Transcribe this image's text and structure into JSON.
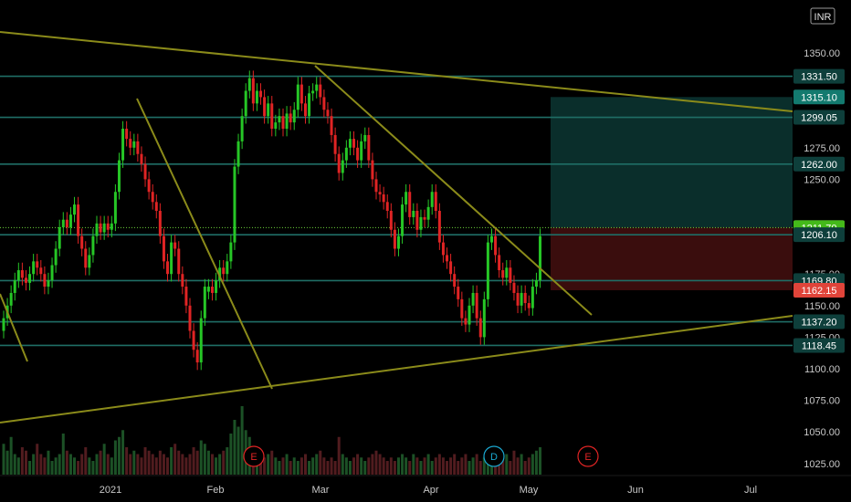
{
  "currency_badge": "INR",
  "colors": {
    "background": "#000000",
    "up": "#26c626",
    "down": "#e02424",
    "hline": "#1f6e66",
    "trendline": "#8b8b1a",
    "target_zone": "#0a2e2b",
    "stop_zone": "#3a0d0d"
  },
  "chart_data": {
    "type": "candlestick",
    "y_axis": {
      "ylim": [
        1015,
        1368
      ],
      "ticks": [
        1025,
        1050,
        1075,
        1100,
        1125,
        1150,
        1175,
        1250,
        1275,
        1350
      ],
      "tick_labels": [
        "1025.00",
        "1050.00",
        "1075.00",
        "1100.00",
        "1125.00",
        "1150.00",
        "1175.00",
        "1250.00",
        "1275.00",
        "1350.00"
      ]
    },
    "x_axis": {
      "labels": [
        "2021",
        "Feb",
        "Mar",
        "Apr",
        "May",
        "Jun",
        "Jul"
      ]
    },
    "horizontal_levels": [
      1331.5,
      1299.05,
      1262.0,
      1206.1,
      1169.8,
      1137.2,
      1118.45
    ],
    "price_tags": [
      {
        "label": "1331.50",
        "value": 1331.5,
        "style": "level"
      },
      {
        "label": "1315.10",
        "value": 1315.1,
        "style": "target"
      },
      {
        "label": "1299.05",
        "value": 1299.05,
        "style": "level"
      },
      {
        "label": "1262.00",
        "value": 1262.0,
        "style": "level"
      },
      {
        "label": "1211.75",
        "value": 1211.75,
        "style": "grey"
      },
      {
        "label": "1211.70",
        "value": 1211.7,
        "style": "last"
      },
      {
        "label": "1206.10",
        "value": 1206.1,
        "style": "level"
      },
      {
        "label": "1169.80",
        "value": 1169.8,
        "style": "level"
      },
      {
        "label": "1162.15",
        "value": 1162.15,
        "style": "stop"
      },
      {
        "label": "1137.20",
        "value": 1137.2,
        "style": "level"
      },
      {
        "label": "1118.45",
        "value": 1118.45,
        "style": "level"
      }
    ],
    "last_price": 1211.7,
    "position": {
      "entry": 1211.7,
      "target": 1315.1,
      "stop": 1162.15
    },
    "events": [
      {
        "label": "E",
        "type": "earnings"
      },
      {
        "label": "D",
        "type": "dividend"
      },
      {
        "label": "E",
        "type": "earnings"
      }
    ],
    "series": [
      {
        "c": 1140,
        "d": 1
      },
      {
        "c": 1150,
        "d": 1
      },
      {
        "c": 1160,
        "d": 1
      },
      {
        "c": 1170,
        "d": 1
      },
      {
        "c": 1178,
        "d": 1
      },
      {
        "c": 1172,
        "d": -1
      },
      {
        "c": 1168,
        "d": -1
      },
      {
        "c": 1175,
        "d": 1
      },
      {
        "c": 1185,
        "d": 1
      },
      {
        "c": 1180,
        "d": -1
      },
      {
        "c": 1175,
        "d": -1
      },
      {
        "c": 1165,
        "d": -1
      },
      {
        "c": 1170,
        "d": 1
      },
      {
        "c": 1182,
        "d": 1
      },
      {
        "c": 1195,
        "d": 1
      },
      {
        "c": 1212,
        "d": 1
      },
      {
        "c": 1218,
        "d": 1
      },
      {
        "c": 1212,
        "d": -1
      },
      {
        "c": 1222,
        "d": 1
      },
      {
        "c": 1230,
        "d": 1
      },
      {
        "c": 1205,
        "d": -1
      },
      {
        "c": 1195,
        "d": -1
      },
      {
        "c": 1180,
        "d": -1
      },
      {
        "c": 1190,
        "d": 1
      },
      {
        "c": 1205,
        "d": 1
      },
      {
        "c": 1215,
        "d": 1
      },
      {
        "c": 1208,
        "d": -1
      },
      {
        "c": 1215,
        "d": 1
      },
      {
        "c": 1210,
        "d": -1
      },
      {
        "c": 1215,
        "d": 1
      },
      {
        "c": 1240,
        "d": 1
      },
      {
        "c": 1265,
        "d": 1
      },
      {
        "c": 1290,
        "d": 1
      },
      {
        "c": 1282,
        "d": -1
      },
      {
        "c": 1275,
        "d": -1
      },
      {
        "c": 1280,
        "d": 1
      },
      {
        "c": 1270,
        "d": -1
      },
      {
        "c": 1262,
        "d": -1
      },
      {
        "c": 1250,
        "d": -1
      },
      {
        "c": 1240,
        "d": -1
      },
      {
        "c": 1232,
        "d": -1
      },
      {
        "c": 1225,
        "d": -1
      },
      {
        "c": 1205,
        "d": -1
      },
      {
        "c": 1185,
        "d": -1
      },
      {
        "c": 1175,
        "d": -1
      },
      {
        "c": 1200,
        "d": 1
      },
      {
        "c": 1195,
        "d": -1
      },
      {
        "c": 1175,
        "d": -1
      },
      {
        "c": 1165,
        "d": -1
      },
      {
        "c": 1150,
        "d": -1
      },
      {
        "c": 1130,
        "d": -1
      },
      {
        "c": 1115,
        "d": -1
      },
      {
        "c": 1105,
        "d": -1
      },
      {
        "c": 1140,
        "d": 1
      },
      {
        "c": 1165,
        "d": 1
      },
      {
        "c": 1165,
        "d": 1
      },
      {
        "c": 1160,
        "d": -1
      },
      {
        "c": 1170,
        "d": 1
      },
      {
        "c": 1180,
        "d": 1
      },
      {
        "c": 1175,
        "d": -1
      },
      {
        "c": 1185,
        "d": 1
      },
      {
        "c": 1200,
        "d": 1
      },
      {
        "c": 1260,
        "d": 1
      },
      {
        "c": 1280,
        "d": 1
      },
      {
        "c": 1300,
        "d": 1
      },
      {
        "c": 1320,
        "d": 1
      },
      {
        "c": 1330,
        "d": 1
      },
      {
        "c": 1310,
        "d": -1
      },
      {
        "c": 1320,
        "d": 1
      },
      {
        "c": 1315,
        "d": -1
      },
      {
        "c": 1300,
        "d": -1
      },
      {
        "c": 1310,
        "d": 1
      },
      {
        "c": 1290,
        "d": -1
      },
      {
        "c": 1295,
        "d": 1
      },
      {
        "c": 1300,
        "d": 1
      },
      {
        "c": 1290,
        "d": -1
      },
      {
        "c": 1302,
        "d": 1
      },
      {
        "c": 1295,
        "d": -1
      },
      {
        "c": 1305,
        "d": 1
      },
      {
        "c": 1325,
        "d": 1
      },
      {
        "c": 1310,
        "d": -1
      },
      {
        "c": 1300,
        "d": -1
      },
      {
        "c": 1318,
        "d": 1
      },
      {
        "c": 1320,
        "d": 1
      },
      {
        "c": 1325,
        "d": 1
      },
      {
        "c": 1315,
        "d": -1
      },
      {
        "c": 1305,
        "d": -1
      },
      {
        "c": 1300,
        "d": -1
      },
      {
        "c": 1285,
        "d": -1
      },
      {
        "c": 1270,
        "d": -1
      },
      {
        "c": 1255,
        "d": -1
      },
      {
        "c": 1265,
        "d": 1
      },
      {
        "c": 1275,
        "d": 1
      },
      {
        "c": 1282,
        "d": 1
      },
      {
        "c": 1275,
        "d": -1
      },
      {
        "c": 1265,
        "d": -1
      },
      {
        "c": 1280,
        "d": 1
      },
      {
        "c": 1285,
        "d": 1
      },
      {
        "c": 1265,
        "d": -1
      },
      {
        "c": 1250,
        "d": -1
      },
      {
        "c": 1240,
        "d": -1
      },
      {
        "c": 1238,
        "d": -1
      },
      {
        "c": 1232,
        "d": -1
      },
      {
        "c": 1225,
        "d": -1
      },
      {
        "c": 1210,
        "d": -1
      },
      {
        "c": 1195,
        "d": -1
      },
      {
        "c": 1205,
        "d": 1
      },
      {
        "c": 1230,
        "d": 1
      },
      {
        "c": 1240,
        "d": 1
      },
      {
        "c": 1220,
        "d": -1
      },
      {
        "c": 1225,
        "d": 1
      },
      {
        "c": 1210,
        "d": -1
      },
      {
        "c": 1220,
        "d": 1
      },
      {
        "c": 1218,
        "d": -1
      },
      {
        "c": 1228,
        "d": 1
      },
      {
        "c": 1240,
        "d": 1
      },
      {
        "c": 1225,
        "d": -1
      },
      {
        "c": 1200,
        "d": -1
      },
      {
        "c": 1190,
        "d": -1
      },
      {
        "c": 1185,
        "d": -1
      },
      {
        "c": 1175,
        "d": -1
      },
      {
        "c": 1165,
        "d": -1
      },
      {
        "c": 1155,
        "d": -1
      },
      {
        "c": 1140,
        "d": -1
      },
      {
        "c": 1135,
        "d": -1
      },
      {
        "c": 1150,
        "d": 1
      },
      {
        "c": 1160,
        "d": 1
      },
      {
        "c": 1140,
        "d": -1
      },
      {
        "c": 1125,
        "d": -1
      },
      {
        "c": 1155,
        "d": 1
      },
      {
        "c": 1200,
        "d": 1
      },
      {
        "c": 1205,
        "d": 1
      },
      {
        "c": 1190,
        "d": -1
      },
      {
        "c": 1178,
        "d": -1
      },
      {
        "c": 1172,
        "d": -1
      },
      {
        "c": 1180,
        "d": 1
      },
      {
        "c": 1168,
        "d": -1
      },
      {
        "c": 1160,
        "d": -1
      },
      {
        "c": 1150,
        "d": -1
      },
      {
        "c": 1160,
        "d": 1
      },
      {
        "c": 1152,
        "d": -1
      },
      {
        "c": 1148,
        "d": -1
      },
      {
        "c": 1165,
        "d": 1
      },
      {
        "c": 1170,
        "d": 1
      },
      {
        "c": 1205,
        "d": 1
      }
    ],
    "volume": [
      0.45,
      0.35,
      0.55,
      0.3,
      0.25,
      0.4,
      0.35,
      0.2,
      0.3,
      0.45,
      0.3,
      0.25,
      0.35,
      0.2,
      0.25,
      0.3,
      0.6,
      0.35,
      0.3,
      0.25,
      0.2,
      0.3,
      0.4,
      0.25,
      0.2,
      0.3,
      0.35,
      0.45,
      0.3,
      0.25,
      0.5,
      0.55,
      0.65,
      0.4,
      0.3,
      0.35,
      0.3,
      0.25,
      0.4,
      0.35,
      0.3,
      0.25,
      0.35,
      0.3,
      0.25,
      0.4,
      0.45,
      0.35,
      0.3,
      0.25,
      0.3,
      0.4,
      0.35,
      0.5,
      0.45,
      0.35,
      0.3,
      0.25,
      0.3,
      0.35,
      0.4,
      0.6,
      0.8,
      0.7,
      1.0,
      0.65,
      0.55,
      0.4,
      0.3,
      0.35,
      0.25,
      0.3,
      0.35,
      0.25,
      0.2,
      0.25,
      0.3,
      0.2,
      0.25,
      0.2,
      0.25,
      0.3,
      0.2,
      0.25,
      0.3,
      0.35,
      0.25,
      0.2,
      0.25,
      0.2,
      0.55,
      0.3,
      0.25,
      0.2,
      0.25,
      0.3,
      0.25,
      0.2,
      0.25,
      0.3,
      0.35,
      0.3,
      0.25,
      0.2,
      0.25,
      0.2,
      0.25,
      0.3,
      0.25,
      0.2,
      0.3,
      0.25,
      0.2,
      0.25,
      0.3,
      0.2,
      0.25,
      0.3,
      0.25,
      0.2,
      0.25,
      0.3,
      0.2,
      0.25,
      0.3,
      0.2,
      0.25,
      0.3,
      0.2,
      0.25,
      0.3,
      0.25,
      0.3,
      0.2,
      0.25,
      0.3,
      0.2,
      0.35,
      0.25,
      0.3,
      0.2,
      0.25,
      0.3,
      0.35,
      0.4
    ]
  }
}
